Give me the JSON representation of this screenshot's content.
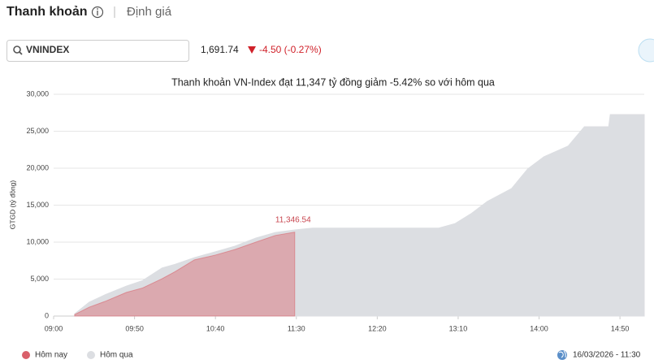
{
  "tabs": [
    "Thanh khoản",
    "Định giá"
  ],
  "search": "VNINDEX",
  "index_value": "1,691.74",
  "change": "-4.50 (-0.27%)",
  "timestamp": "16/03/2026 - 11:30",
  "chart_data": {
    "type": "area",
    "title": "Thanh khoản VN-Index đạt 11,347 tỷ đồng giảm -5.42% so với hôm qua",
    "ylabel": "GTGD (tỷ đồng)",
    "x": [
      553,
      562,
      572,
      585,
      595,
      607,
      615,
      627,
      640,
      652,
      665,
      677,
      689,
      700,
      720,
      740,
      760,
      778,
      788,
      798,
      808,
      823,
      833,
      843,
      858,
      868,
      883,
      884,
      905
    ],
    "series": [
      {
        "name": "Hôm nay",
        "color": "#d9606a",
        "values": [
          200,
          1200,
          2000,
          3200,
          3800,
          5050,
          6000,
          7600,
          8250,
          9000,
          10000,
          10900,
          11346.54,
          null,
          null,
          null,
          null,
          null,
          null,
          null,
          null,
          null,
          null,
          null,
          null,
          null,
          null,
          null,
          null
        ],
        "value_labels": [
          null,
          null,
          null,
          null,
          null,
          null,
          null,
          null,
          null,
          null,
          null,
          null,
          "11,346.54",
          null,
          null,
          null,
          null,
          null,
          null,
          null,
          null,
          null,
          null,
          null,
          null,
          null,
          null,
          null,
          null
        ]
      },
      {
        "name": "Hôm qua",
        "color": "#dcdee2",
        "values": [
          300,
          1870,
          2900,
          4050,
          4800,
          6500,
          7000,
          7900,
          8700,
          9450,
          10550,
          11300,
          11650,
          11900,
          11900,
          11900,
          11900,
          11900,
          12500,
          13850,
          15500,
          17250,
          19900,
          21550,
          23000,
          25600,
          25600,
          27250,
          27250
        ]
      }
    ],
    "xlim": [
      540,
      905
    ],
    "xticks": [
      {
        "value": 540,
        "label": "09:00"
      },
      {
        "value": 590,
        "label": "09:50"
      },
      {
        "value": 640,
        "label": "10:40"
      },
      {
        "value": 690,
        "label": "11:30"
      },
      {
        "value": 740,
        "label": "12:20"
      },
      {
        "value": 790,
        "label": "13:10"
      },
      {
        "value": 840,
        "label": "14:00"
      },
      {
        "value": 890,
        "label": "14:50"
      }
    ],
    "ylim": [
      0,
      30000
    ],
    "yticks": [
      0,
      {
        "value": 5000,
        "label": "5,000"
      },
      {
        "value": 10000,
        "label": "10,000"
      },
      {
        "value": 15000,
        "label": "15,000"
      },
      {
        "value": 20000,
        "label": "20,000"
      },
      {
        "value": 25000,
        "label": "25,000"
      },
      {
        "value": 30000,
        "label": "30,000"
      }
    ],
    "grid": true
  }
}
